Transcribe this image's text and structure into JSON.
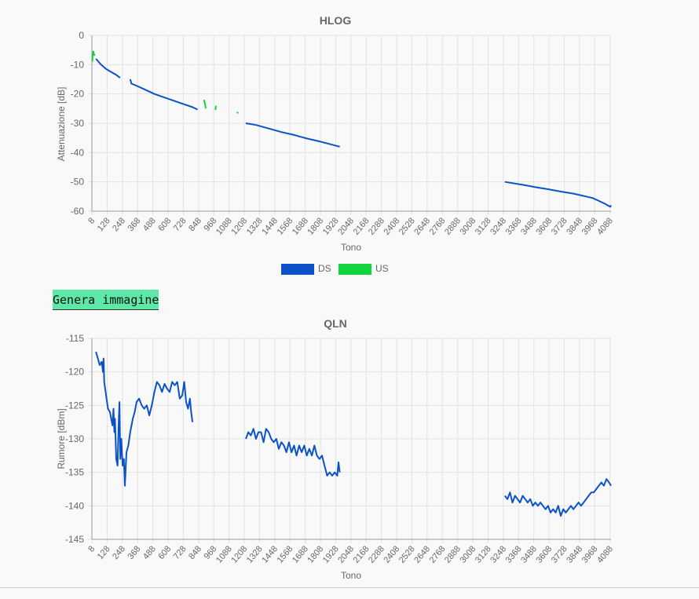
{
  "colors": {
    "ds": "#0b52c8",
    "us": "#12d43c",
    "grid": "#e2e2e2",
    "axis": "#9a9a9a",
    "button": "#5de8a8"
  },
  "generate_button": "Genera immagine",
  "chart_data": [
    {
      "type": "line",
      "title": "HLOG",
      "xlabel": "Tono",
      "ylabel": "Attenuazione [dB]",
      "xlim": [
        8,
        4096
      ],
      "ylim": [
        -60,
        0
      ],
      "yticks": [
        0,
        -10,
        -20,
        -30,
        -40,
        -50,
        -60
      ],
      "xticks": [
        "8",
        "128",
        "248",
        "368",
        "488",
        "608",
        "728",
        "848",
        "968",
        "1088",
        "1208",
        "1328",
        "1448",
        "1568",
        "1688",
        "1808",
        "1928",
        "2048",
        "2168",
        "2288",
        "2408",
        "2528",
        "2648",
        "2768",
        "2888",
        "3008",
        "3128",
        "3248",
        "3368",
        "3488",
        "3608",
        "3728",
        "3848",
        "3968",
        "4088"
      ],
      "grid": true,
      "legend_position": "bottom",
      "series": [
        {
          "name": "DS",
          "segments": [
            [
              [
                40,
                -8
              ],
              [
                80,
                -10
              ],
              [
                120,
                -11.5
              ],
              [
                160,
                -12.5
              ],
              [
                200,
                -13.5
              ],
              [
                230,
                -14.5
              ]
            ],
            [
              [
                310,
                -15
              ],
              [
                320,
                -16.5
              ],
              [
                350,
                -17
              ],
              [
                400,
                -18
              ],
              [
                500,
                -20
              ],
              [
                600,
                -21.5
              ],
              [
                700,
                -23
              ],
              [
                800,
                -24.5
              ],
              [
                840,
                -25.3
              ]
            ],
            [
              [
                1220,
                -30
              ],
              [
                1300,
                -30.6
              ],
              [
                1400,
                -31.8
              ],
              [
                1500,
                -33
              ],
              [
                1600,
                -34
              ],
              [
                1700,
                -35.2
              ],
              [
                1800,
                -36.2
              ],
              [
                1900,
                -37.3
              ],
              [
                1960,
                -38
              ]
            ],
            [
              [
                3260,
                -50
              ],
              [
                3400,
                -51
              ],
              [
                3500,
                -51.8
              ],
              [
                3600,
                -52.5
              ],
              [
                3700,
                -53.3
              ],
              [
                3800,
                -54
              ],
              [
                3900,
                -55
              ],
              [
                3950,
                -55.5
              ],
              [
                4000,
                -56.5
              ],
              [
                4050,
                -57.5
              ],
              [
                4090,
                -58.5
              ],
              [
                4096,
                -58
              ]
            ]
          ]
        },
        {
          "name": "US",
          "segments": [
            [
              [
                12,
                -9
              ],
              [
                15,
                -6
              ],
              [
                20,
                -5.5
              ],
              [
                25,
                -6.5
              ],
              [
                30,
                -7
              ]
            ],
            [
              [
                890,
                -22
              ],
              [
                900,
                -23.5
              ],
              [
                905,
                -25
              ]
            ],
            [
              [
                985,
                -24
              ],
              [
                980,
                -25.5
              ]
            ],
            [
              [
                1150,
                -26.2
              ],
              [
                1160,
                -26.6
              ]
            ]
          ]
        }
      ]
    },
    {
      "type": "line",
      "title": "QLN",
      "xlabel": "Tono",
      "ylabel": "Rumore [dBm]",
      "xlim": [
        8,
        4096
      ],
      "ylim": [
        -145,
        -115
      ],
      "yticks": [
        -115,
        -120,
        -125,
        -130,
        -135,
        -140,
        -145
      ],
      "xticks": [
        "8",
        "128",
        "248",
        "368",
        "488",
        "608",
        "728",
        "848",
        "968",
        "1088",
        "1208",
        "1328",
        "1448",
        "1568",
        "1688",
        "1808",
        "1928",
        "2048",
        "2168",
        "2288",
        "2408",
        "2528",
        "2648",
        "2768",
        "2888",
        "3008",
        "3128",
        "3248",
        "3368",
        "3488",
        "3608",
        "3728",
        "3848",
        "3968",
        "4088"
      ],
      "grid": true,
      "series": [
        {
          "name": "DS",
          "segments": [
            [
              [
                40,
                -117
              ],
              [
                55,
                -118
              ],
              [
                70,
                -119
              ],
              [
                85,
                -118.5
              ],
              [
                95,
                -120
              ],
              [
                100,
                -118
              ],
              [
                105,
                -121.5
              ],
              [
                120,
                -123.5
              ],
              [
                135,
                -125.5
              ],
              [
                150,
                -126
              ],
              [
                160,
                -127
              ],
              [
                170,
                -128
              ],
              [
                178,
                -125.5
              ],
              [
                185,
                -129
              ],
              [
                190,
                -127
              ],
              [
                200,
                -133
              ],
              [
                210,
                -134
              ],
              [
                218,
                -128
              ],
              [
                225,
                -124.5
              ],
              [
                232,
                -133
              ],
              [
                240,
                -130
              ],
              [
                250,
                -134
              ],
              [
                260,
                -133
              ],
              [
                268,
                -137
              ],
              [
                280,
                -132
              ],
              [
                295,
                -131
              ],
              [
                310,
                -129
              ],
              [
                330,
                -127
              ],
              [
                345,
                -126
              ],
              [
                360,
                -124.5
              ],
              [
                380,
                -124
              ],
              [
                400,
                -125
              ],
              [
                420,
                -125.5
              ],
              [
                440,
                -125
              ],
              [
                460,
                -126.5
              ],
              [
                480,
                -125
              ],
              [
                500,
                -123
              ],
              [
                520,
                -121.5
              ],
              [
                540,
                -122
              ],
              [
                560,
                -123
              ],
              [
                580,
                -121.8
              ],
              [
                600,
                -122.5
              ],
              [
                620,
                -123
              ],
              [
                640,
                -121.5
              ],
              [
                660,
                -122
              ],
              [
                680,
                -121.5
              ],
              [
                700,
                -124
              ],
              [
                720,
                -123.5
              ],
              [
                735,
                -121.5
              ],
              [
                750,
                -124.5
              ],
              [
                765,
                -125.5
              ],
              [
                780,
                -124
              ],
              [
                790,
                -126
              ],
              [
                800,
                -127.5
              ]
            ],
            [
              [
                1220,
                -130
              ],
              [
                1240,
                -129
              ],
              [
                1260,
                -129.5
              ],
              [
                1280,
                -128.5
              ],
              [
                1300,
                -130
              ],
              [
                1320,
                -129
              ],
              [
                1340,
                -129
              ],
              [
                1360,
                -130.5
              ],
              [
                1380,
                -128.5
              ],
              [
                1400,
                -129
              ],
              [
                1420,
                -130
              ],
              [
                1440,
                -130.5
              ],
              [
                1460,
                -130
              ],
              [
                1480,
                -131.5
              ],
              [
                1500,
                -130.5
              ],
              [
                1520,
                -131
              ],
              [
                1540,
                -132
              ],
              [
                1560,
                -130.5
              ],
              [
                1580,
                -132
              ],
              [
                1600,
                -131
              ],
              [
                1620,
                -132.5
              ],
              [
                1640,
                -131
              ],
              [
                1660,
                -132
              ],
              [
                1680,
                -131
              ],
              [
                1700,
                -132.5
              ],
              [
                1720,
                -131.5
              ],
              [
                1740,
                -132.5
              ],
              [
                1760,
                -131
              ],
              [
                1780,
                -132.5
              ],
              [
                1800,
                -133
              ],
              [
                1820,
                -132.5
              ],
              [
                1840,
                -134
              ],
              [
                1860,
                -135.5
              ],
              [
                1880,
                -135
              ],
              [
                1900,
                -135.5
              ],
              [
                1920,
                -135
              ],
              [
                1940,
                -135.5
              ],
              [
                1950,
                -133.5
              ],
              [
                1960,
                -135
              ]
            ],
            [
              [
                3260,
                -138.5
              ],
              [
                3280,
                -139
              ],
              [
                3300,
                -138
              ],
              [
                3320,
                -139.5
              ],
              [
                3340,
                -138.5
              ],
              [
                3360,
                -139
              ],
              [
                3380,
                -139.5
              ],
              [
                3400,
                -138.5
              ],
              [
                3420,
                -139
              ],
              [
                3440,
                -139.5
              ],
              [
                3460,
                -139
              ],
              [
                3480,
                -140
              ],
              [
                3500,
                -139.5
              ],
              [
                3520,
                -140
              ],
              [
                3540,
                -139.5
              ],
              [
                3560,
                -140
              ],
              [
                3580,
                -140.5
              ],
              [
                3600,
                -140
              ],
              [
                3620,
                -141
              ],
              [
                3640,
                -140.5
              ],
              [
                3660,
                -141
              ],
              [
                3680,
                -140
              ],
              [
                3700,
                -141.5
              ],
              [
                3720,
                -140.5
              ],
              [
                3740,
                -141
              ],
              [
                3760,
                -140.5
              ],
              [
                3780,
                -140
              ],
              [
                3800,
                -140.5
              ],
              [
                3820,
                -140
              ],
              [
                3840,
                -139.5
              ],
              [
                3860,
                -140
              ],
              [
                3880,
                -139.5
              ],
              [
                3900,
                -139
              ],
              [
                3920,
                -138.5
              ],
              [
                3940,
                -138
              ],
              [
                3960,
                -138
              ],
              [
                3980,
                -137.5
              ],
              [
                4000,
                -137
              ],
              [
                4020,
                -136.5
              ],
              [
                4040,
                -137
              ],
              [
                4060,
                -136
              ],
              [
                4080,
                -136.5
              ],
              [
                4096,
                -137
              ]
            ]
          ]
        }
      ]
    }
  ]
}
